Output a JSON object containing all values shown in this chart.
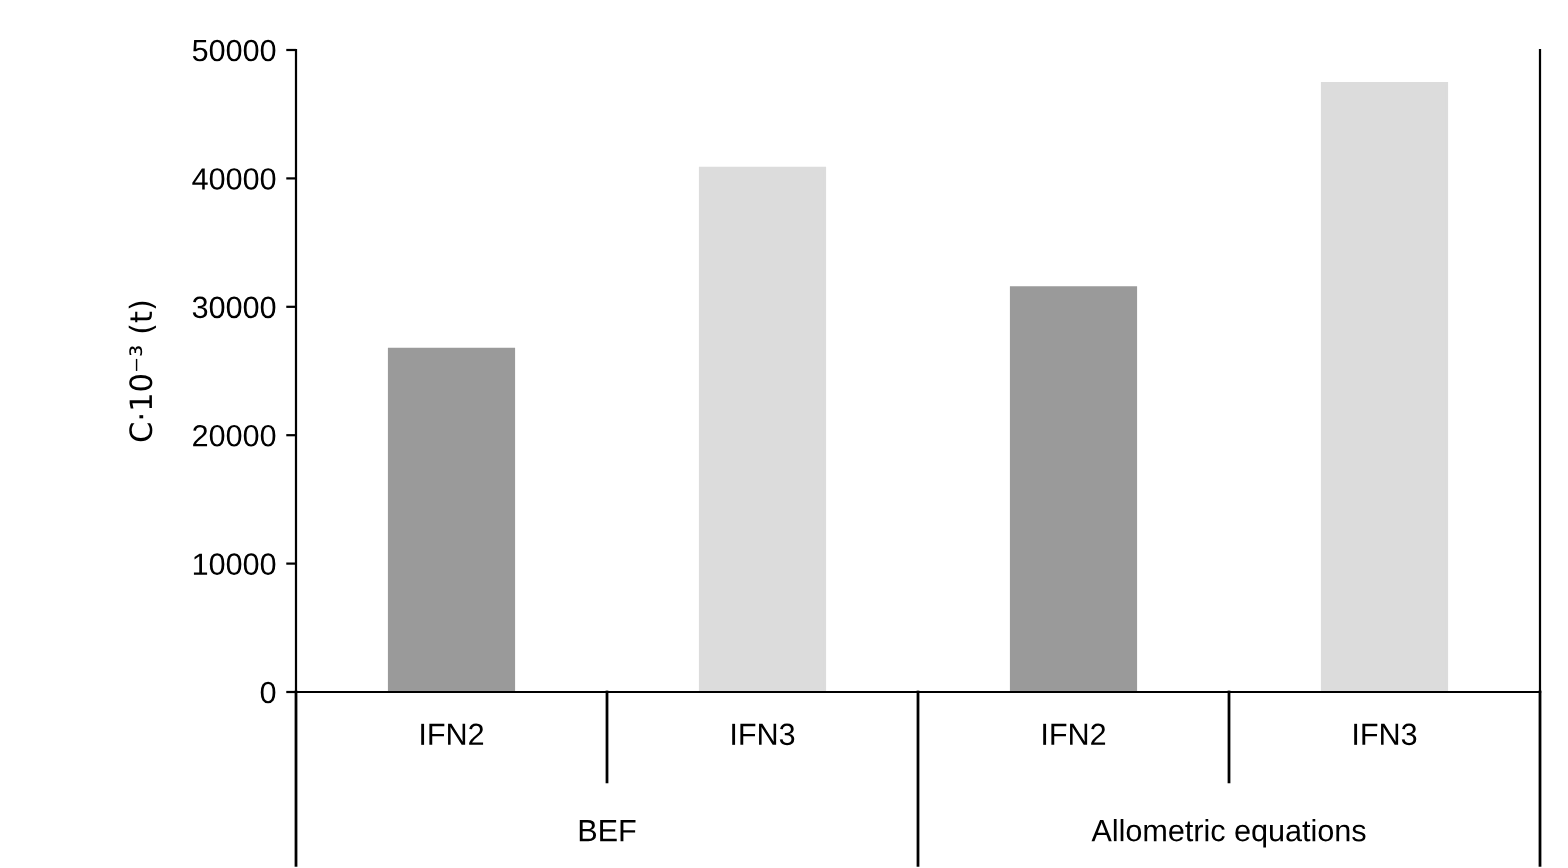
{
  "chart_data": {
    "type": "bar",
    "ylabel": "C·10⁻³ (t)",
    "categories": [
      "IFN2",
      "IFN3",
      "IFN2",
      "IFN3"
    ],
    "values": [
      26700,
      40800,
      31500,
      47400
    ],
    "colors": [
      "#9a9a9a",
      "#dcdcdc",
      "#9a9a9a",
      "#dcdcdc"
    ],
    "ylim": [
      0,
      50000
    ],
    "yticks": [
      0,
      10000,
      20000,
      30000,
      40000,
      50000
    ],
    "grid": false,
    "legend": false,
    "annotations": [
      "BEF",
      "Allometric equations"
    ]
  }
}
